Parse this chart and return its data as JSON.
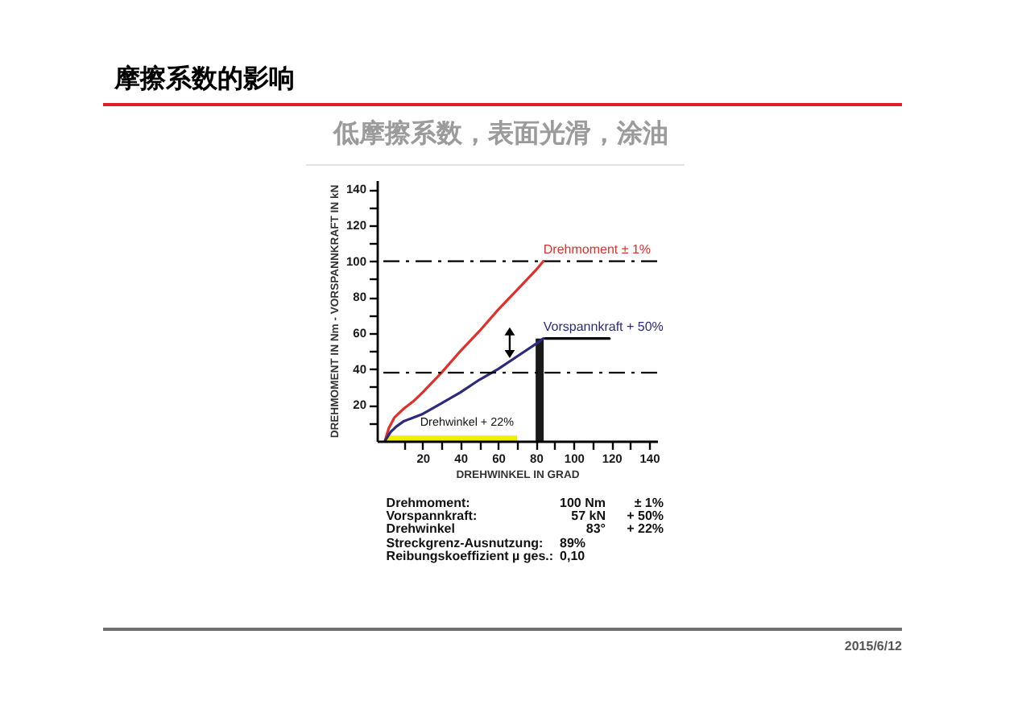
{
  "chart_data": {
    "type": "line",
    "title": "摩擦系数的影响",
    "subtitle": "低摩擦系数，表面光滑，涂油",
    "xlabel": "DREHWINKEL IN GRAD",
    "ylabel": "DREHMOMENT IN Nm - VORSPANNKRAFT IN kN",
    "xlim": [
      0,
      140
    ],
    "ylim": [
      0,
      145
    ],
    "xticks": [
      {
        "value": 10,
        "label": null
      },
      20,
      {
        "value": 30,
        "label": null
      },
      40,
      {
        "value": 50,
        "label": null
      },
      60,
      {
        "value": 70,
        "label": null
      },
      80,
      {
        "value": 90,
        "label": null
      },
      100,
      {
        "value": 110,
        "label": null
      },
      120,
      {
        "value": 130,
        "label": null
      },
      140
    ],
    "yticks": [
      {
        "value": 10,
        "label": null
      },
      20,
      {
        "value": 30,
        "label": null
      },
      40,
      {
        "value": 50,
        "label": null
      },
      60,
      {
        "value": 70,
        "label": null
      },
      80,
      {
        "value": 90,
        "label": null
      },
      100,
      {
        "value": 110,
        "label": null
      },
      120,
      {
        "value": 130,
        "label": null
      },
      140
    ],
    "series": [
      {
        "name": "Drehmoment ± 1%",
        "color": "#e0302c",
        "x": [
          0,
          2,
          5,
          10,
          15,
          20,
          30,
          40,
          50,
          60,
          70,
          80,
          84
        ],
        "values": [
          0,
          7,
          13,
          18,
          22,
          27,
          38,
          50,
          61,
          73,
          84,
          95,
          100
        ]
      },
      {
        "name": "Vorspannkraft + 50%",
        "color": "#2b2a7c",
        "x": [
          0,
          3,
          6,
          10,
          15,
          20,
          30,
          40,
          50,
          60,
          70,
          80,
          84
        ],
        "values": [
          0,
          5,
          8,
          11,
          13,
          15,
          21,
          27,
          34,
          40,
          47,
          54,
          57
        ]
      },
      {
        "type": "bar",
        "color": "#1a1a1a",
        "x": [
          82
        ],
        "values": [
          57
        ]
      },
      {
        "color": "#000000",
        "x": [
          85,
          119
        ],
        "values": [
          57,
          57
        ]
      },
      {
        "type": "area",
        "name": "Drehwinkel + 22%",
        "color": "#f2ee00",
        "x": [
          0,
          70
        ],
        "values": [
          3,
          3
        ]
      }
    ],
    "ref_lines": [
      {
        "axis": "y",
        "value": 100,
        "color": "#000000",
        "line_style": "dashed"
      },
      {
        "axis": "y",
        "value": 38,
        "color": "#000000",
        "line_style": "dashed"
      }
    ],
    "annotations": [
      "Drehmoment:\t100 Nm\t± 1%",
      "Vorspannkraft:\t57 kN\t+ 50%",
      "Drehwinkel\t83°\t+ 22%",
      "Streckgrenz-Ausnutzung:\t89%",
      "Reibungskoeffizient µ ges.:\t0,10",
      "2015/6/12"
    ]
  }
}
